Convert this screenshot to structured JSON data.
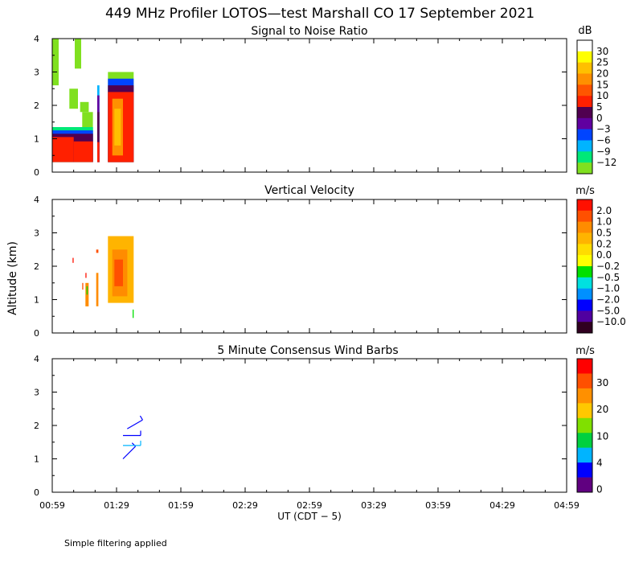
{
  "title": "449 MHz Profiler LOTOS—test Marshall CO 17 September 2021",
  "footer_note": "Simple filtering applied",
  "chart_data": [
    {
      "type": "heatmap",
      "title": "Signal to Noise Ratio",
      "ylabel": "",
      "ylim": [
        0,
        4
      ],
      "y_ticks": [
        "0",
        "1",
        "2",
        "3",
        "4"
      ],
      "colorbar": {
        "unit": "dB",
        "labels": [
          "30",
          "25",
          "20",
          "15",
          "10",
          "5",
          "0",
          "−3",
          "−6",
          "−9",
          "−12"
        ],
        "colors": [
          "#ffffff",
          "#ffff00",
          "#ffc000",
          "#ff9000",
          "#ff5500",
          "#ff2000",
          "#500050",
          "#6000a0",
          "#0044ff",
          "#00b4ff",
          "#00e878",
          "#80e020"
        ]
      },
      "regions": [
        {
          "t0": 0.0,
          "t1": 3.0,
          "a0": 2.6,
          "a1": 4.0,
          "level": 11
        },
        {
          "t0": 10.5,
          "t1": 13.5,
          "a0": 3.1,
          "a1": 4.0,
          "level": 11
        },
        {
          "t0": 8.0,
          "t1": 12.0,
          "a0": 1.9,
          "a1": 2.5,
          "level": 11
        },
        {
          "t0": 13.0,
          "t1": 17.0,
          "a0": 1.8,
          "a1": 2.1,
          "level": 11
        },
        {
          "t0": 14.0,
          "t1": 19.0,
          "a0": 1.2,
          "a1": 1.8,
          "level": 11
        },
        {
          "t0": 0.0,
          "t1": 19.0,
          "a0": 0.3,
          "a1": 1.35,
          "level": 10
        },
        {
          "t0": 0.0,
          "t1": 19.0,
          "a0": 0.3,
          "a1": 1.25,
          "level": 8
        },
        {
          "t0": 0.0,
          "t1": 19.0,
          "a0": 0.3,
          "a1": 1.15,
          "level": 6
        },
        {
          "t0": 0.0,
          "t1": 10.0,
          "a0": 0.3,
          "a1": 1.05,
          "level": 5
        },
        {
          "t0": 10.0,
          "t1": 19.0,
          "a0": 0.3,
          "a1": 0.92,
          "level": 5
        },
        {
          "t0": 21.0,
          "t1": 22.0,
          "a0": 0.3,
          "a1": 2.6,
          "level": 9
        },
        {
          "t0": 21.0,
          "t1": 22.0,
          "a0": 0.3,
          "a1": 2.3,
          "level": 7
        },
        {
          "t0": 21.0,
          "t1": 22.0,
          "a0": 0.3,
          "a1": 1.8,
          "level": 6
        },
        {
          "t0": 21.0,
          "t1": 22.0,
          "a0": 0.3,
          "a1": 0.9,
          "level": 5
        },
        {
          "t0": 26.0,
          "t1": 38.0,
          "a0": 0.3,
          "a1": 3.0,
          "level": 11
        },
        {
          "t0": 26.0,
          "t1": 38.0,
          "a0": 0.3,
          "a1": 2.8,
          "level": 8
        },
        {
          "t0": 26.0,
          "t1": 38.0,
          "a0": 0.3,
          "a1": 2.6,
          "level": 6
        },
        {
          "t0": 26.0,
          "t1": 38.0,
          "a0": 0.3,
          "a1": 2.4,
          "level": 5
        },
        {
          "t0": 28.0,
          "t1": 33.0,
          "a0": 0.5,
          "a1": 2.2,
          "level": 3
        },
        {
          "t0": 29.0,
          "t1": 32.0,
          "a0": 0.8,
          "a1": 1.9,
          "level": 2
        }
      ]
    },
    {
      "type": "heatmap",
      "title": "Vertical Velocity",
      "ylabel": "Altitude (km)",
      "ylim": [
        0,
        4
      ],
      "y_ticks": [
        "0",
        "1",
        "2",
        "3",
        "4"
      ],
      "colorbar": {
        "unit": "m/s",
        "labels": [
          "2.0",
          "1.0",
          "0.5",
          "0.2",
          "0.0",
          "−0.2",
          "−0.5",
          "−1.0",
          "−2.0",
          "−5.0",
          "−10.0"
        ],
        "colors": [
          "#ff1000",
          "#ff5000",
          "#ff8c00",
          "#ffb400",
          "#ffdc00",
          "#ffff00",
          "#00e000",
          "#00e0e0",
          "#0090ff",
          "#0000ff",
          "#5000a0",
          "#300020"
        ]
      },
      "regions": [
        {
          "t0": 9.5,
          "t1": 10.0,
          "a0": 2.1,
          "a1": 2.25,
          "level": 0
        },
        {
          "t0": 14.0,
          "t1": 14.5,
          "a0": 1.3,
          "a1": 1.5,
          "level": 1
        },
        {
          "t0": 15.5,
          "t1": 16.0,
          "a0": 1.65,
          "a1": 1.8,
          "level": 0
        },
        {
          "t0": 15.5,
          "t1": 17.0,
          "a0": 0.8,
          "a1": 1.5,
          "level": 2
        },
        {
          "t0": 16.0,
          "t1": 16.5,
          "a0": 1.15,
          "a1": 1.4,
          "level": 6
        },
        {
          "t0": 20.5,
          "t1": 21.5,
          "a0": 2.4,
          "a1": 2.5,
          "level": 1
        },
        {
          "t0": 20.5,
          "t1": 21.5,
          "a0": 0.8,
          "a1": 1.8,
          "level": 2
        },
        {
          "t0": 26.0,
          "t1": 38.0,
          "a0": 0.9,
          "a1": 2.9,
          "level": 3
        },
        {
          "t0": 28.0,
          "t1": 35.0,
          "a0": 1.1,
          "a1": 2.5,
          "level": 2
        },
        {
          "t0": 29.0,
          "t1": 33.0,
          "a0": 1.4,
          "a1": 2.2,
          "level": 1
        },
        {
          "t0": 37.5,
          "t1": 38.0,
          "a0": 0.45,
          "a1": 0.7,
          "level": 6
        }
      ]
    },
    {
      "type": "scatter",
      "title": "5 Minute Consensus Wind Barbs",
      "ylabel": "",
      "ylim": [
        0,
        4
      ],
      "y_ticks": [
        "0",
        "1",
        "2",
        "3",
        "4"
      ],
      "colorbar": {
        "unit": "m/s",
        "labels": [
          "30",
          "20",
          "10",
          "4",
          "0"
        ],
        "colors": [
          "#ff0000",
          "#ff5000",
          "#ff9000",
          "#ffc800",
          "#80e000",
          "#00d040",
          "#00b4ff",
          "#0000ff",
          "#600080"
        ]
      },
      "barbs": [
        {
          "t": 33.0,
          "alt": 1.0,
          "speed_ms": 2,
          "dir_deg": 225
        },
        {
          "t": 33.0,
          "alt": 1.4,
          "speed_ms": 6,
          "dir_deg": 270
        },
        {
          "t": 33.0,
          "alt": 1.7,
          "speed_ms": 5,
          "dir_deg": 270
        },
        {
          "t": 35.0,
          "alt": 1.9,
          "speed_ms": 2,
          "dir_deg": 240
        }
      ]
    }
  ],
  "x_axis": {
    "label": "UT  (CDT − 5)",
    "range_minutes": [
      0,
      240
    ],
    "tick_labels": [
      "00:59",
      "01:29",
      "01:59",
      "02:29",
      "02:59",
      "03:29",
      "03:59",
      "04:29",
      "04:59"
    ]
  }
}
